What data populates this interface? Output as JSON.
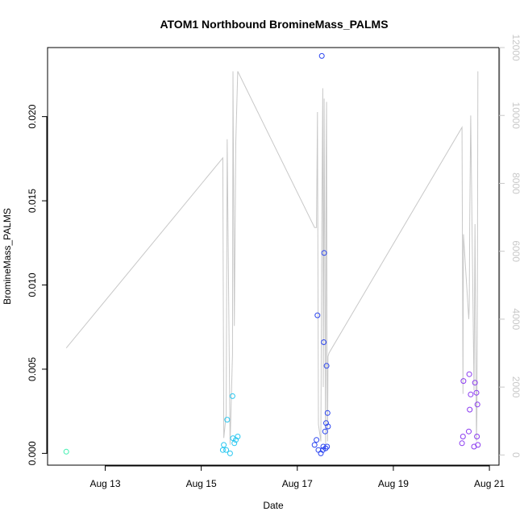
{
  "chart_data": {
    "type": "scatter",
    "title": "ATOM1 Northbound BromineMass_PALMS",
    "xlabel": "Date",
    "ylabel": "BromineMass_PALMS",
    "x_unit": "days (August 2016, fractional day of month)",
    "xlim": [
      11.8,
      21.2
    ],
    "ylim": [
      -0.0007,
      0.0241
    ],
    "x_ticks": [
      {
        "value": 13,
        "label": "Aug 13"
      },
      {
        "value": 15,
        "label": "Aug 15"
      },
      {
        "value": 17,
        "label": "Aug 17"
      },
      {
        "value": 19,
        "label": "Aug 19"
      },
      {
        "value": 21,
        "label": "Aug 21"
      }
    ],
    "y_ticks": [
      {
        "value": 0.0,
        "label": "0.000"
      },
      {
        "value": 0.005,
        "label": "0.005"
      },
      {
        "value": 0.01,
        "label": "0.010"
      },
      {
        "value": 0.015,
        "label": "0.015"
      },
      {
        "value": 0.02,
        "label": "0.020"
      }
    ],
    "y2_ticks": [
      {
        "value": 0,
        "label": "0"
      },
      {
        "value": 2000,
        "label": "2000"
      },
      {
        "value": 4000,
        "label": "4000"
      },
      {
        "value": 6000,
        "label": "6000"
      },
      {
        "value": 8000,
        "label": "8000"
      },
      {
        "value": 10000,
        "label": "10000"
      },
      {
        "value": 12000,
        "label": "12000"
      }
    ],
    "y2lim": [
      -300,
      12000
    ],
    "grid": false,
    "legend": "none",
    "series": [
      {
        "color": "#40f0b0",
        "points": [
          [
            12.19,
            0.0001
          ]
        ]
      },
      {
        "color": "#29c7f0",
        "points": [
          [
            15.45,
            0.0002
          ],
          [
            15.47,
            0.0005
          ],
          [
            15.52,
            0.0002
          ],
          [
            15.54,
            0.002
          ],
          [
            15.6,
            0.0
          ],
          [
            15.65,
            0.0034
          ],
          [
            15.66,
            0.0009
          ],
          [
            15.69,
            0.0006
          ],
          [
            15.72,
            0.0008
          ],
          [
            15.76,
            0.001
          ]
        ]
      },
      {
        "color": "#2b45f0",
        "points": [
          [
            17.36,
            0.0005
          ],
          [
            17.4,
            0.0008
          ],
          [
            17.42,
            0.0082
          ],
          [
            17.44,
            0.0002
          ],
          [
            17.49,
            0.0
          ],
          [
            17.51,
            0.0236
          ],
          [
            17.53,
            0.0002
          ],
          [
            17.54,
            0.0004
          ],
          [
            17.55,
            0.0066
          ],
          [
            17.56,
            0.0119
          ],
          [
            17.58,
            0.0013
          ],
          [
            17.59,
            0.0003
          ],
          [
            17.6,
            0.0018
          ],
          [
            17.61,
            0.0052
          ],
          [
            17.62,
            0.0004
          ],
          [
            17.63,
            0.0024
          ],
          [
            17.64,
            0.0016
          ]
        ]
      },
      {
        "color": "#8a3af0",
        "points": [
          [
            20.43,
            0.0006
          ],
          [
            20.45,
            0.001
          ],
          [
            20.46,
            0.0043
          ],
          [
            20.57,
            0.0013
          ],
          [
            20.58,
            0.0047
          ],
          [
            20.59,
            0.0026
          ],
          [
            20.61,
            0.0035
          ],
          [
            20.68,
            0.0004
          ],
          [
            20.7,
            0.0042
          ],
          [
            20.73,
            0.0036
          ],
          [
            20.74,
            0.001
          ],
          [
            20.75,
            0.0029
          ],
          [
            20.76,
            0.0005
          ]
        ]
      }
    ],
    "secondary_line": {
      "color": "#c8c8c8",
      "axis": "right",
      "x": [
        12.19,
        15.45,
        15.47,
        15.52,
        15.54,
        15.6,
        15.65,
        15.66,
        15.69,
        15.72,
        15.76,
        17.36,
        17.4,
        17.42,
        17.44,
        17.49,
        17.51,
        17.53,
        17.54,
        17.55,
        17.56,
        17.58,
        17.59,
        17.6,
        17.61,
        17.62,
        17.63,
        17.64,
        17.66,
        20.43,
        20.45,
        20.46,
        20.57,
        20.58,
        20.59,
        20.61,
        20.68,
        20.7,
        20.73,
        20.74,
        20.75,
        20.76
      ],
      "y": [
        3150,
        8750,
        500,
        1200,
        9300,
        300,
        2950,
        11300,
        3800,
        9200,
        11300,
        6700,
        6700,
        10100,
        900,
        400,
        7000,
        10800,
        2000,
        6300,
        10500,
        3200,
        300,
        8700,
        10400,
        2600,
        400,
        2900,
        3000,
        9650,
        1800,
        6500,
        4000,
        4400,
        7000,
        10000,
        1900,
        6800,
        400,
        1200,
        4800,
        11300
      ]
    }
  }
}
